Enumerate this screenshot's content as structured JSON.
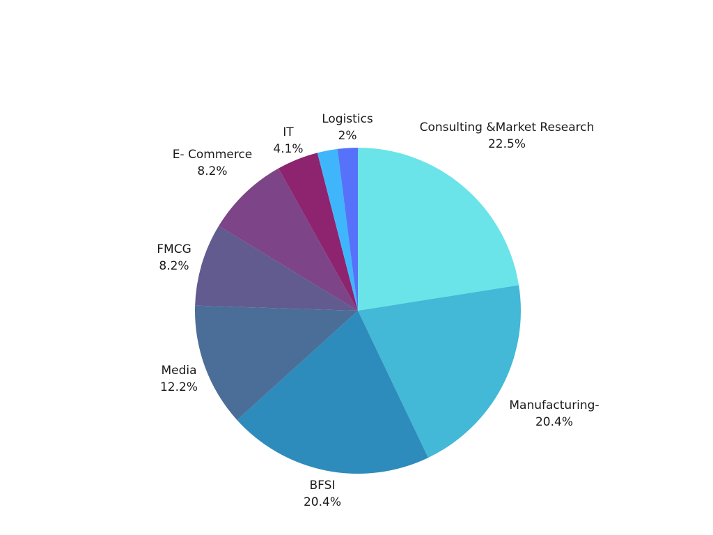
{
  "chart_data": {
    "type": "pie",
    "title": "",
    "slices": [
      {
        "label": "Consulting &Market Research",
        "value": 22.5,
        "value_label": "22.5%",
        "color": "#6be4e9"
      },
      {
        "label": "Manufacturing-",
        "value": 20.4,
        "value_label": "20.4%",
        "color": "#43b8d7"
      },
      {
        "label": "BFSI",
        "value": 20.4,
        "value_label": "20.4%",
        "color": "#2d8cbb"
      },
      {
        "label": "Media",
        "value": 12.2,
        "value_label": "12.2%",
        "color": "#4b6e98"
      },
      {
        "label": "FMCG",
        "value": 8.2,
        "value_label": "8.2%",
        "color": "#615b90"
      },
      {
        "label": "E- Commerce",
        "value": 8.2,
        "value_label": "8.2%",
        "color": "#7d4587"
      },
      {
        "label": "IT",
        "value": 4.1,
        "value_label": "4.1%",
        "color": "#8e236f"
      },
      {
        "label": "Logistics",
        "value": 2,
        "value_label": "2%",
        "color": "#3fb6fb"
      },
      {
        "label": "",
        "value": 2,
        "value_label": "",
        "color": "#5672fa"
      }
    ]
  }
}
